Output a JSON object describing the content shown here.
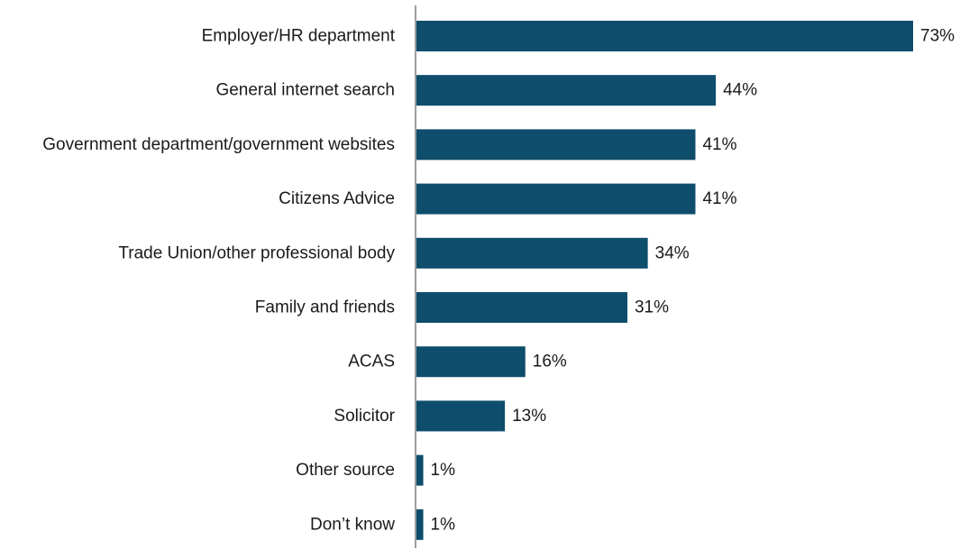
{
  "chart_data": {
    "type": "bar",
    "orientation": "horizontal",
    "title": "",
    "xlabel": "",
    "ylabel": "",
    "value_suffix": "%",
    "xlim": [
      0,
      73
    ],
    "grid": false,
    "legend": "none",
    "bar_color": "#0e4d6b",
    "categories": [
      "Employer/HR department",
      "General internet search",
      "Government department/government websites",
      "Citizens Advice",
      "Trade Union/other professional body",
      "Family and friends",
      "ACAS",
      "Solicitor",
      "Other source",
      "Don’t know"
    ],
    "values": [
      73,
      44,
      41,
      41,
      34,
      31,
      16,
      13,
      1,
      1
    ]
  }
}
